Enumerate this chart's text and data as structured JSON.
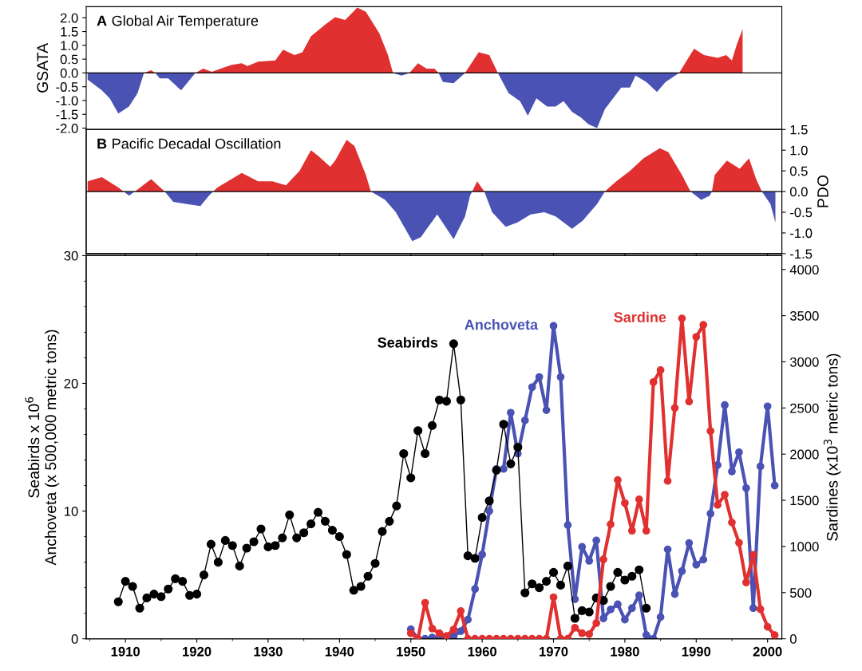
{
  "chart_data": [
    {
      "type": "area",
      "title": "A Global Air Temperature",
      "ylabel": "GSATA",
      "xlim": [
        1904.5,
        2002
      ],
      "xticks": [
        1910,
        1920,
        1930,
        1940,
        1950,
        1960,
        1970,
        1980,
        1990,
        2000
      ],
      "ylim": [
        -2.05,
        2.4
      ],
      "yticks": [
        {
          "value": -2.0,
          "label": "-2.0"
        },
        {
          "value": -1.5,
          "label": "-1.5"
        },
        {
          "value": -1.0,
          "label": "-1.0"
        },
        {
          "value": -0.5,
          "label": "-0.5"
        },
        {
          "value": 0,
          "label": "0.0"
        },
        {
          "value": 0.5,
          "label": "0.5"
        },
        {
          "value": 1.0,
          "label": "1.0"
        },
        {
          "value": 1.5,
          "label": "1.5"
        },
        {
          "value": 2.0,
          "label": "2.0"
        }
      ],
      "tick_labels": "y",
      "ref_lines": [
        {
          "axis": "y",
          "value": 0,
          "color": "#000000"
        }
      ],
      "series": [
        {
          "color": "#e03030",
          "x": [
            1912.6,
            1913.6,
            1914.2,
            1919.8,
            1920.9,
            1922.1,
            1924.8,
            1926.3,
            1927.1,
            1928.6,
            1931.0,
            1932.1,
            1933.7,
            1934.8,
            1936.0,
            1937.9,
            1939.4,
            1940.8,
            1942.5,
            1943.7,
            1945.6,
            1946.8,
            1947.5,
            1949.8,
            1951.0,
            1952.2,
            1953.3,
            1953.9,
            1957.6,
            1959.5,
            1961.0,
            1962.2,
            1987.6,
            1989.7,
            1991.1,
            1993.0,
            1994.2,
            1995.0,
            1995.7,
            1996.5
          ],
          "values": [
            0,
            0.1,
            0,
            0,
            0.16,
            0.04,
            0.29,
            0.35,
            0.25,
            0.41,
            0.45,
            0.84,
            0.65,
            0.75,
            1.33,
            1.73,
            2.02,
            1.92,
            2.37,
            2.22,
            1.43,
            0.65,
            0,
            0,
            0.35,
            0.16,
            0.16,
            0,
            0,
            0.75,
            0.65,
            0,
            0,
            0.88,
            0.65,
            0.55,
            0.65,
            0.45,
            1.04,
            1.59
          ]
        },
        {
          "color": "#4a52b4",
          "x": [
            1904.7,
            1906.7,
            1907.8,
            1909.0,
            1910.5,
            1911.7,
            1912.6,
            1914.2,
            1914.8,
            1916.0,
            1917.8,
            1919.8,
            1947.5,
            1948.7,
            1949.8,
            1953.9,
            1954.5,
            1956.0,
            1957.6,
            1962.2,
            1963.7,
            1965.3,
            1966.4,
            1967.6,
            1969.1,
            1970.3,
            1971.4,
            1972.6,
            1973.8,
            1974.9,
            1976.1,
            1977.2,
            1979.5,
            1980.7,
            1981.5,
            1983.0,
            1984.5,
            1985.7,
            1987.6
          ],
          "values": [
            -0.24,
            -0.63,
            -0.92,
            -1.47,
            -1.22,
            -0.73,
            0,
            0,
            -0.2,
            -0.2,
            -0.63,
            0,
            0,
            -0.1,
            0,
            0,
            -0.33,
            -0.37,
            0,
            0,
            -0.73,
            -1.02,
            -1.55,
            -0.92,
            -1.22,
            -1.22,
            -1.02,
            -1.41,
            -1.61,
            -1.86,
            -2.0,
            -1.31,
            -0.53,
            -0.53,
            -0.1,
            -0.33,
            -0.69,
            -0.33,
            0
          ]
        }
      ]
    },
    {
      "type": "area",
      "title": "B Pacific Decadal Oscillation",
      "y2label": "PDO",
      "xlim": [
        1904.5,
        2002
      ],
      "xticks": [
        1910,
        1920,
        1930,
        1940,
        1950,
        1960,
        1970,
        1980,
        1990,
        2000
      ],
      "y2lim": [
        -1.5,
        1.5
      ],
      "y2ticks": [
        {
          "value": -1.5,
          "label": "-1.5"
        },
        {
          "value": -1.0,
          "label": "-1.0"
        },
        {
          "value": -0.5,
          "label": "-0.5"
        },
        {
          "value": 0,
          "label": "0.0"
        },
        {
          "value": 0.5,
          "label": "0.5"
        },
        {
          "value": 1.0,
          "label": "1.0"
        },
        {
          "value": 1.5,
          "label": "1.5"
        }
      ],
      "tick_labels": "y",
      "ref_lines": [
        {
          "axis": "y2",
          "value": 0,
          "color": "#000000"
        }
      ],
      "series": [
        {
          "axis": "y2",
          "color": "#e03030",
          "x": [
            1904.7,
            1906.7,
            1909.0,
            1909.75,
            1911.3,
            1911.7,
            1913.6,
            1915.5,
            1922.3,
            1922.9,
            1926.3,
            1928.6,
            1930.6,
            1932.5,
            1934.4,
            1936.0,
            1937.1,
            1938.7,
            1939.4,
            1941.0,
            1942.1,
            1943.7,
            1944.4,
            1958.6,
            1959.3,
            1960.3,
            1977.2,
            1978.8,
            1980.7,
            1982.6,
            1984.9,
            1986.1,
            1988.0,
            1989.2,
            1992.2,
            1992.6,
            1994.3,
            1996.1,
            1997.4,
            1998.4,
            1999.2
          ],
          "values": [
            0.25,
            0.35,
            0.1,
            0,
            0,
            0.05,
            0.3,
            0,
            0,
            0.1,
            0.45,
            0.25,
            0.25,
            0.15,
            0.5,
            1.0,
            0.85,
            0.6,
            0.75,
            1.25,
            1.1,
            0.4,
            0,
            0,
            0.25,
            0,
            0,
            0.25,
            0.5,
            0.8,
            1.05,
            0.95,
            0.4,
            0,
            0,
            0.4,
            0.75,
            0.55,
            0.8,
            0.3,
            0
          ]
        },
        {
          "axis": "y2",
          "color": "#4a52b4",
          "x": [
            1909.75,
            1910.5,
            1911.3,
            1915.5,
            1916.7,
            1918.6,
            1920.5,
            1921.7,
            1922.3,
            1944.4,
            1946.4,
            1947.9,
            1950.2,
            1951.4,
            1953.7,
            1956.0,
            1957.6,
            1958.3,
            1958.6,
            1960.3,
            1961.4,
            1963.3,
            1964.9,
            1966.8,
            1968.7,
            1970.3,
            1972.6,
            1974.1,
            1976.1,
            1977.2,
            1989.2,
            1990.7,
            1991.9,
            1992.2,
            1999.2,
            2000.4,
            2001.1
          ],
          "values": [
            0,
            -0.1,
            0,
            0,
            -0.25,
            -0.3,
            -0.35,
            -0.1,
            0,
            0,
            -0.2,
            -0.5,
            -1.2,
            -1.1,
            -0.55,
            -1.15,
            -0.6,
            -0.1,
            0,
            0,
            -0.5,
            -0.85,
            -0.75,
            -0.55,
            -0.5,
            -0.6,
            -0.9,
            -0.7,
            -0.3,
            0,
            0,
            -0.2,
            -0.1,
            0,
            0,
            -0.3,
            -0.75
          ]
        }
      ]
    },
    {
      "type": "line",
      "ylabel": "Seabirds x 10$^{6}$\nAnchoveta (x 500,000 metric tons)",
      "y2label": "Sardines (x10$^{3}$ metric tons)",
      "marker": "circle",
      "xlim": [
        1904.5,
        2002
      ],
      "xticks": [
        {
          "value": 1905,
          "label": null
        },
        1910,
        {
          "value": 1915,
          "label": null
        },
        1920,
        {
          "value": 1925,
          "label": null
        },
        1930,
        {
          "value": 1935,
          "label": null
        },
        1940,
        {
          "value": 1945,
          "label": null
        },
        1950,
        {
          "value": 1955,
          "label": null
        },
        1960,
        {
          "value": 1965,
          "label": null
        },
        1970,
        {
          "value": 1975,
          "label": null
        },
        1980,
        {
          "value": 1985,
          "label": null
        },
        1990,
        {
          "value": 1995,
          "label": null
        },
        2000
      ],
      "ylim": [
        0,
        30
      ],
      "yticks": [
        0,
        {
          "value": 2,
          "label": null
        },
        {
          "value": 4,
          "label": null
        },
        {
          "value": 6,
          "label": null
        },
        {
          "value": 8,
          "label": null
        },
        10,
        {
          "value": 12,
          "label": null
        },
        {
          "value": 14,
          "label": null
        },
        {
          "value": 16,
          "label": null
        },
        {
          "value": 18,
          "label": null
        },
        20,
        {
          "value": 22,
          "label": null
        },
        {
          "value": 24,
          "label": null
        },
        {
          "value": 26,
          "label": null
        },
        {
          "value": 28,
          "label": null
        },
        30
      ],
      "y2lim": [
        0,
        4150
      ],
      "y2ticks": [
        0,
        500,
        1000,
        1500,
        2000,
        2500,
        3000,
        3500,
        4000
      ],
      "series": [
        {
          "name": "Seabirds",
          "color": "#000000",
          "x": [
            1909,
            1910,
            1911,
            1912,
            1913,
            1914,
            1915,
            1916,
            1917,
            1918,
            1919,
            1920,
            1921,
            1922,
            1923,
            1924,
            1925,
            1926,
            1927,
            1928,
            1929,
            1930,
            1931,
            1932,
            1933,
            1934,
            1935,
            1936,
            1937,
            1938,
            1939,
            1940,
            1941,
            1942,
            1943,
            1944,
            1945,
            1946,
            1947,
            1948,
            1949,
            1950,
            1951,
            1952,
            1953,
            1954,
            1955,
            1956,
            1957,
            1958,
            1959,
            1960,
            1961,
            1962,
            1963,
            1964,
            1965,
            1966,
            1967,
            1968,
            1969,
            1970,
            1971,
            1972,
            1973,
            1974,
            1975,
            1976,
            1977,
            1978,
            1979,
            1980,
            1981,
            1982,
            1983
          ],
          "values": [
            2.9,
            4.5,
            4.1,
            2.4,
            3.2,
            3.5,
            3.3,
            3.9,
            4.7,
            4.5,
            3.4,
            3.5,
            5.0,
            7.4,
            6.0,
            7.7,
            7.3,
            5.7,
            7.1,
            7.6,
            8.6,
            7.2,
            7.3,
            7.9,
            9.7,
            7.9,
            8.3,
            9.0,
            9.9,
            9.2,
            8.5,
            8.0,
            6.6,
            3.8,
            4.1,
            4.9,
            5.9,
            8.4,
            9.2,
            10.4,
            14.5,
            12.6,
            16.3,
            14.5,
            16.7,
            18.7,
            18.6,
            23.1,
            18.7,
            6.5,
            6.3,
            9.5,
            10.8,
            13.2,
            16.8,
            13.7,
            15.0,
            3.6,
            4.3,
            4.0,
            4.5,
            5.2,
            4.2,
            5.7,
            1.6,
            2.2,
            2.1,
            3.2,
            3.0,
            4.1,
            5.2,
            4.6,
            4.9,
            5.4,
            2.4
          ]
        },
        {
          "name": "Anchoveta",
          "color": "#4a52b4",
          "x": [
            1950,
            1951,
            1952,
            1953,
            1954,
            1955,
            1956,
            1957,
            1958,
            1959,
            1960,
            1961,
            1962,
            1963,
            1964,
            1965,
            1966,
            1967,
            1968,
            1969,
            1970,
            1971,
            1972,
            1973,
            1974,
            1975,
            1976,
            1977,
            1978,
            1979,
            1980,
            1981,
            1982,
            1983,
            1984,
            1985,
            1986,
            1987,
            1988,
            1989,
            1990,
            1991,
            1992,
            1993,
            1994,
            1995,
            1996,
            1997,
            1998,
            1999,
            2000,
            2001
          ],
          "values": [
            0.75,
            0,
            0,
            0.1,
            0.1,
            0,
            0.2,
            0.6,
            1.5,
            3.9,
            6.6,
            10.0,
            13.3,
            13.3,
            17.7,
            14.5,
            17.1,
            19.7,
            20.5,
            17.9,
            24.5,
            20.5,
            8.9,
            3.1,
            7.2,
            6.1,
            7.7,
            1.6,
            2.3,
            2.7,
            1.5,
            2.4,
            3.4,
            0.3,
            0.0,
            1.7,
            7.0,
            3.5,
            5.3,
            7.5,
            5.8,
            6.2,
            9.8,
            13.6,
            18.3,
            13.1,
            14.6,
            11.8,
            2.4,
            13.5,
            18.2,
            12.0
          ]
        },
        {
          "name": "Sardine",
          "color": "#e03030",
          "axis": "y2",
          "x": [
            1950,
            1951,
            1952,
            1953,
            1954,
            1955,
            1956,
            1957,
            1958,
            1959,
            1960,
            1961,
            1962,
            1963,
            1964,
            1965,
            1966,
            1967,
            1968,
            1969,
            1970,
            1971,
            1972,
            1973,
            1974,
            1975,
            1976,
            1977,
            1978,
            1979,
            1980,
            1981,
            1982,
            1983,
            1984,
            1985,
            1986,
            1987,
            1988,
            1989,
            1990,
            1991,
            1992,
            1993,
            1994,
            1995,
            1996,
            1997,
            1998,
            1999,
            2000,
            2001
          ],
          "values": [
            60,
            0,
            390,
            110,
            60,
            30,
            100,
            300,
            0,
            0,
            0,
            0,
            0,
            0,
            0,
            0,
            0,
            0,
            0,
            0,
            450,
            0,
            0,
            120,
            60,
            50,
            170,
            860,
            1240,
            1720,
            1470,
            1170,
            1510,
            1170,
            2780,
            2910,
            1710,
            2500,
            3470,
            2570,
            3270,
            3400,
            2250,
            1450,
            1560,
            1260,
            1040,
            610,
            910,
            320,
            130,
            40
          ]
        }
      ]
    }
  ]
}
